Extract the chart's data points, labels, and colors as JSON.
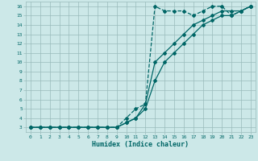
{
  "xlabel": "Humidex (Indice chaleur)",
  "bg_color": "#cce8e8",
  "grid_color": "#99bbbb",
  "line_color": "#006666",
  "xlim": [
    -0.5,
    23.5
  ],
  "ylim": [
    2.5,
    16.5
  ],
  "xticks": [
    0,
    1,
    2,
    3,
    4,
    5,
    6,
    7,
    8,
    9,
    10,
    11,
    12,
    13,
    14,
    15,
    16,
    17,
    18,
    19,
    20,
    21,
    22,
    23
  ],
  "yticks": [
    3,
    4,
    5,
    6,
    7,
    8,
    9,
    10,
    11,
    12,
    13,
    14,
    15,
    16
  ],
  "series1_x": [
    0,
    1,
    2,
    3,
    4,
    5,
    6,
    7,
    8,
    9,
    10,
    11,
    12,
    13,
    14,
    15,
    16,
    17,
    18,
    19,
    20,
    21,
    22,
    23
  ],
  "series1_y": [
    3,
    3,
    3,
    3,
    3,
    3,
    3,
    3,
    3,
    3,
    4,
    5,
    5.5,
    16,
    15.5,
    15.5,
    15.5,
    15,
    15.5,
    16,
    16,
    15,
    15.5,
    16
  ],
  "series2_x": [
    0,
    1,
    2,
    3,
    4,
    5,
    6,
    7,
    8,
    9,
    10,
    11,
    12,
    13,
    14,
    15,
    16,
    17,
    18,
    19,
    20,
    21,
    22,
    23
  ],
  "series2_y": [
    3,
    3,
    3,
    3,
    3,
    3,
    3,
    3,
    3,
    3,
    3.5,
    4,
    5.5,
    10,
    11,
    12,
    13,
    14,
    14.5,
    15,
    15.5,
    15.5,
    15.5,
    16
  ],
  "series3_x": [
    0,
    1,
    2,
    3,
    4,
    5,
    6,
    7,
    8,
    9,
    10,
    11,
    12,
    13,
    14,
    15,
    16,
    17,
    18,
    19,
    20,
    21,
    22,
    23
  ],
  "series3_y": [
    3,
    3,
    3,
    3,
    3,
    3,
    3,
    3,
    3,
    3,
    3.5,
    4,
    5,
    8,
    10,
    11,
    12,
    13,
    14,
    14.5,
    15,
    15,
    15.5,
    16
  ]
}
